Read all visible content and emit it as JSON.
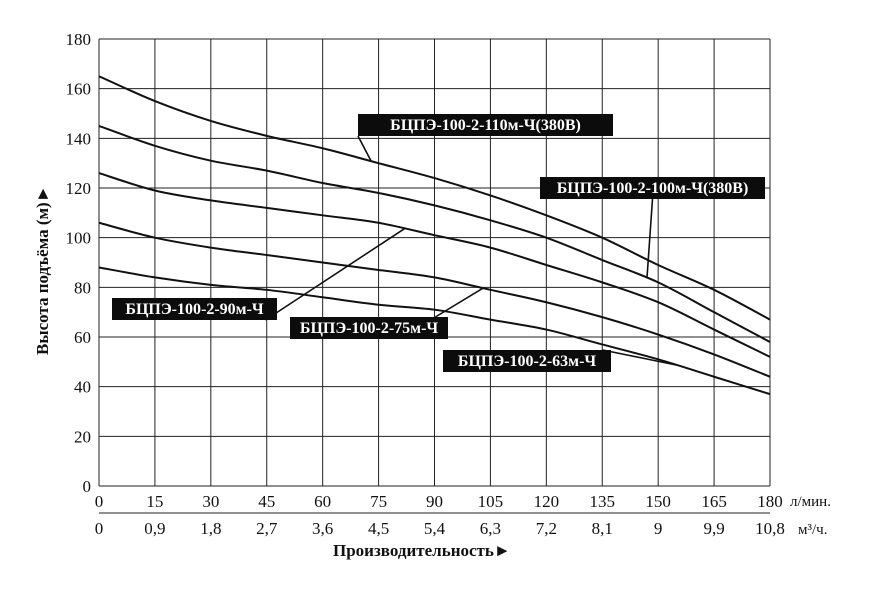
{
  "chart_data": {
    "type": "line",
    "ylabel": "Высота подъёма (м)",
    "xlabel": "Производительность",
    "x_units_primary": "л/мин.",
    "x_units_secondary": "м³/ч.",
    "x_ticks_primary": [
      "0",
      "15",
      "30",
      "45",
      "60",
      "75",
      "90",
      "105",
      "120",
      "135",
      "150",
      "165",
      "180"
    ],
    "x_ticks_secondary": [
      "0",
      "0,9",
      "1,8",
      "2,7",
      "3,6",
      "4,5",
      "5,4",
      "6,3",
      "7,2",
      "8,1",
      "9",
      "9,9",
      "10,8"
    ],
    "y_ticks": [
      "0",
      "20",
      "40",
      "60",
      "80",
      "100",
      "120",
      "140",
      "160",
      "180"
    ],
    "xlim": [
      0,
      180
    ],
    "ylim": [
      0,
      180
    ],
    "grid": true,
    "series": [
      {
        "name": "БЦПЭ-100-2-110м-Ч(380В)",
        "x": [
          0,
          15,
          30,
          45,
          60,
          75,
          90,
          105,
          120,
          135,
          150,
          165,
          180
        ],
        "y": [
          165,
          155,
          147,
          141,
          136,
          130,
          124,
          117,
          109,
          100,
          89,
          79,
          67
        ]
      },
      {
        "name": "БЦПЭ-100-2-100м-Ч(380В)",
        "x": [
          0,
          15,
          30,
          45,
          60,
          75,
          90,
          105,
          120,
          135,
          150,
          165,
          180
        ],
        "y": [
          145,
          137,
          131,
          127,
          122,
          118,
          113,
          107,
          100,
          91,
          82,
          70,
          58
        ]
      },
      {
        "name": "БЦПЭ-100-2-90м-Ч",
        "x": [
          0,
          15,
          30,
          45,
          60,
          75,
          90,
          105,
          120,
          135,
          150,
          165,
          180
        ],
        "y": [
          126,
          119,
          115,
          112,
          109,
          106,
          101,
          96,
          89,
          82,
          74,
          63,
          52
        ]
      },
      {
        "name": "БЦПЭ-100-2-75м-Ч",
        "x": [
          0,
          15,
          30,
          45,
          60,
          75,
          90,
          105,
          120,
          135,
          150,
          165,
          180
        ],
        "y": [
          106,
          100,
          96,
          93,
          90,
          87,
          84,
          79,
          74,
          68,
          61,
          53,
          44
        ]
      },
      {
        "name": "БЦПЭ-100-2-63м-Ч",
        "x": [
          0,
          15,
          30,
          45,
          60,
          75,
          90,
          105,
          120,
          135,
          150,
          165,
          180
        ],
        "y": [
          88,
          84,
          81,
          79,
          76,
          73,
          71,
          67,
          63,
          57,
          51,
          44,
          37
        ]
      }
    ],
    "annotations": [
      {
        "series": 0,
        "text": "БЦПЭ-100-2-110м-Ч(380В)",
        "at_x": 73
      },
      {
        "series": 1,
        "text": "БЦПЭ-100-2-100м-Ч(380В)",
        "at_x": 147
      },
      {
        "series": 2,
        "text": "БЦПЭ-100-2-90м-Ч",
        "at_x": 82
      },
      {
        "series": 3,
        "text": "БЦПЭ-100-2-75м-Ч",
        "at_x": 103
      },
      {
        "series": 4,
        "text": "БЦПЭ-100-2-63м-Ч",
        "at_x": 155
      }
    ]
  }
}
